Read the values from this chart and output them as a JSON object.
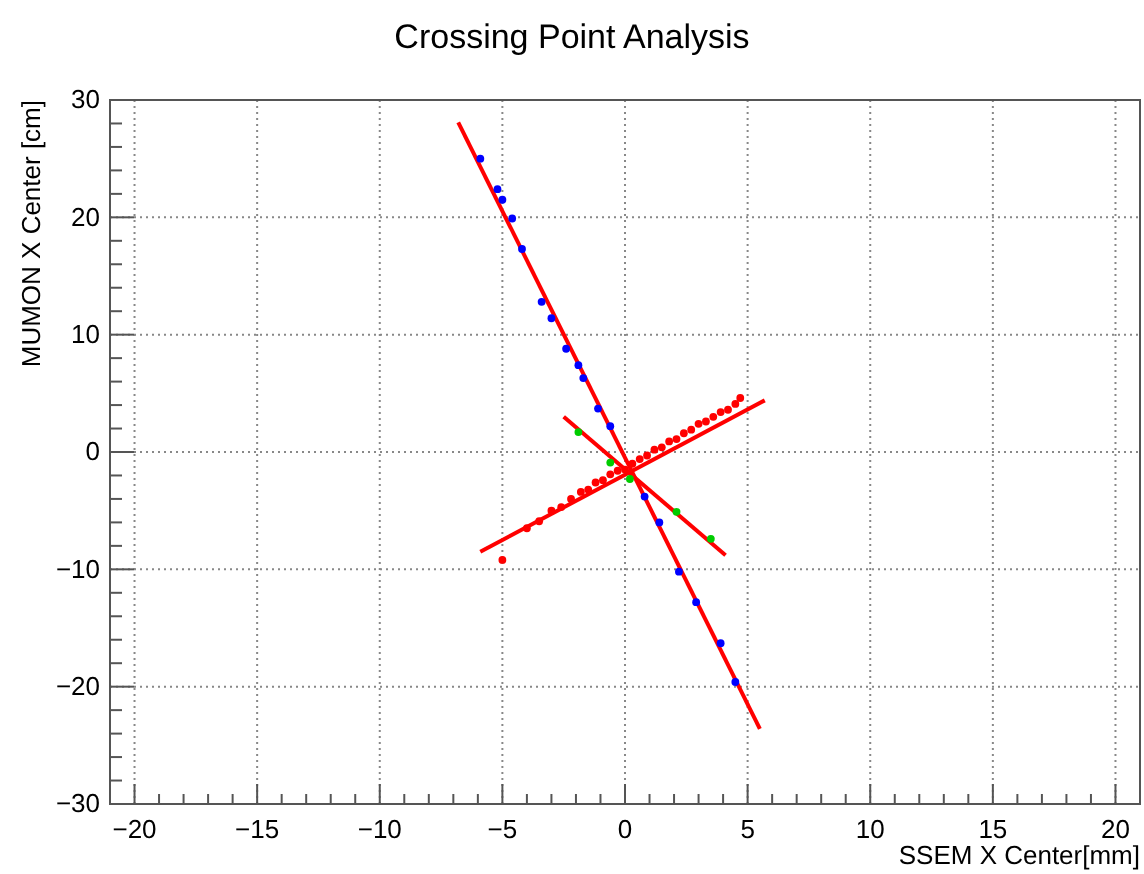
{
  "chart_data": {
    "type": "scatter",
    "title": "Crossing Point Analysis",
    "xlabel": "SSEM X Center[mm]",
    "ylabel": "MUMON X Center [cm]",
    "xlim": [
      -21,
      21
    ],
    "ylim": [
      -30,
      30
    ],
    "xticks": [
      {
        "value": -21,
        "label": null
      },
      -20,
      {
        "value": -19,
        "label": null
      },
      {
        "value": -18,
        "label": null
      },
      {
        "value": -17,
        "label": null
      },
      {
        "value": -16,
        "label": null
      },
      -15,
      {
        "value": -14,
        "label": null
      },
      {
        "value": -13,
        "label": null
      },
      {
        "value": -12,
        "label": null
      },
      {
        "value": -11,
        "label": null
      },
      -10,
      {
        "value": -9,
        "label": null
      },
      {
        "value": -8,
        "label": null
      },
      {
        "value": -7,
        "label": null
      },
      {
        "value": -6,
        "label": null
      },
      -5,
      {
        "value": -4,
        "label": null
      },
      {
        "value": -3,
        "label": null
      },
      {
        "value": -2,
        "label": null
      },
      {
        "value": -1,
        "label": null
      },
      0,
      {
        "value": 1,
        "label": null
      },
      {
        "value": 2,
        "label": null
      },
      {
        "value": 3,
        "label": null
      },
      {
        "value": 4,
        "label": null
      },
      5,
      {
        "value": 6,
        "label": null
      },
      {
        "value": 7,
        "label": null
      },
      {
        "value": 8,
        "label": null
      },
      {
        "value": 9,
        "label": null
      },
      10,
      {
        "value": 11,
        "label": null
      },
      {
        "value": 12,
        "label": null
      },
      {
        "value": 13,
        "label": null
      },
      {
        "value": 14,
        "label": null
      },
      15,
      {
        "value": 16,
        "label": null
      },
      {
        "value": 17,
        "label": null
      },
      {
        "value": 18,
        "label": null
      },
      {
        "value": 19,
        "label": null
      },
      20,
      {
        "value": 21,
        "label": null
      }
    ],
    "yticks": [
      -30,
      {
        "value": -28,
        "label": null
      },
      {
        "value": -26,
        "label": null
      },
      {
        "value": -24,
        "label": null
      },
      {
        "value": -22,
        "label": null
      },
      -20,
      {
        "value": -18,
        "label": null
      },
      {
        "value": -16,
        "label": null
      },
      {
        "value": -14,
        "label": null
      },
      {
        "value": -12,
        "label": null
      },
      -10,
      {
        "value": -8,
        "label": null
      },
      {
        "value": -6,
        "label": null
      },
      {
        "value": -4,
        "label": null
      },
      {
        "value": -2,
        "label": null
      },
      0,
      {
        "value": 2,
        "label": null
      },
      {
        "value": 4,
        "label": null
      },
      {
        "value": 6,
        "label": null
      },
      {
        "value": 8,
        "label": null
      },
      10,
      {
        "value": 12,
        "label": null
      },
      {
        "value": 14,
        "label": null
      },
      {
        "value": 16,
        "label": null
      },
      {
        "value": 18,
        "label": null
      },
      20,
      {
        "value": 22,
        "label": null
      },
      {
        "value": 24,
        "label": null
      },
      {
        "value": 26,
        "label": null
      },
      {
        "value": 28,
        "label": null
      },
      30
    ],
    "grid": true,
    "marker": "circle",
    "series": [
      {
        "type": "line",
        "color": "#ff0000",
        "marker": "none",
        "x": [
          -6.8,
          5.5
        ],
        "values": [
          28.1,
          -23.6
        ]
      },
      {
        "type": "line",
        "color": "#ff0000",
        "marker": "none",
        "x": [
          -5.9,
          5.7
        ],
        "values": [
          -8.5,
          4.4
        ]
      },
      {
        "type": "line",
        "color": "#ff0000",
        "marker": "none",
        "x": [
          -2.5,
          4.1
        ],
        "values": [
          3,
          -8.8
        ]
      },
      {
        "color": "#0000ff",
        "x": [
          -5.9,
          -5.2,
          -5.0,
          -4.6,
          -4.2,
          -3.4,
          -3.0,
          -2.4,
          -1.9,
          -1.7,
          -1.1,
          -0.6,
          0.1,
          0.8,
          1.4,
          2.2,
          2.9,
          3.9,
          4.5
        ],
        "values": [
          25.0,
          22.4,
          21.5,
          19.9,
          17.3,
          12.8,
          11.4,
          8.8,
          7.4,
          6.3,
          3.7,
          2.2,
          null,
          -3.8,
          -6.0,
          -10.2,
          -12.8,
          -16.3,
          -19.6
        ]
      },
      {
        "color": "#00cc00",
        "x": [
          -1.9,
          -0.6,
          0.2,
          2.1,
          3.5
        ],
        "values": [
          1.7,
          -0.9,
          -2.3,
          -5.1,
          -7.4
        ]
      },
      {
        "color": "#ff0000",
        "x": [
          -5.0,
          -4.0,
          -3.5,
          -3.0,
          -2.6,
          -2.2,
          -1.8,
          -1.5,
          -1.2,
          -0.9,
          -0.6,
          -0.3,
          0,
          0.3,
          0.6,
          0.9,
          1.2,
          1.5,
          1.8,
          2.1,
          2.4,
          2.7,
          3.0,
          3.3,
          3.6,
          3.9,
          4.2,
          4.5,
          4.7
        ],
        "values": [
          -9.2,
          -6.5,
          -5.9,
          -5.0,
          -4.7,
          -4.0,
          -3.4,
          -3.2,
          -2.6,
          -2.4,
          -1.9,
          -1.6,
          -1.5,
          -1.0,
          -0.6,
          -0.3,
          0.2,
          0.4,
          0.9,
          1.1,
          1.6,
          1.9,
          2.4,
          2.6,
          3.0,
          3.4,
          3.6,
          4.1,
          4.6
        ]
      }
    ]
  }
}
